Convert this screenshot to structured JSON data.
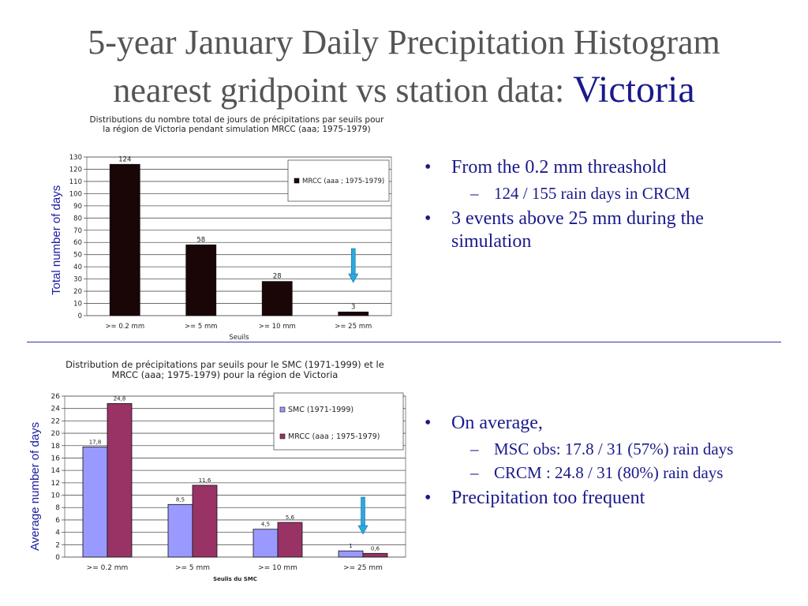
{
  "slide": {
    "title_line1": "5-year January Daily Precipitation Histogram",
    "title_line2": "nearest gridpoint vs station data: ",
    "title_highlight": "Victoria"
  },
  "colors": {
    "title": "#555555",
    "highlight": "#1a1a8c",
    "bullets": "#1a1a8c",
    "arrow": "#29a9e0"
  },
  "bullets_top": [
    {
      "text": "From the 0.2 mm threashold",
      "sub": [
        "124 / 155 rain days in CRCM"
      ]
    },
    {
      "text": "3 events above 25 mm during the simulation",
      "sub": []
    }
  ],
  "bullets_bottom": [
    {
      "text": "On average,",
      "sub": [
        "MSC obs: 17.8 / 31   (57%) rain days",
        "CRCM : 24.8 / 31  (80%) rain days"
      ]
    },
    {
      "text": "Precipitation too frequent",
      "sub": []
    }
  ],
  "chart_data": [
    {
      "type": "bar",
      "title": "Distributions du nombre total de jours de précipitations par seuils pour la région de Victoria pendant simulation MRCC (aaa; 1975-1979)",
      "xlabel": "Seuils",
      "ylabel": "Total number of days",
      "ylim": [
        0,
        130
      ],
      "yticks": [
        0,
        10,
        20,
        30,
        40,
        50,
        60,
        70,
        80,
        90,
        100,
        110,
        120,
        130
      ],
      "grid": true,
      "legend_position": "top-right",
      "categories": [
        ">= 0.2 mm",
        ">= 5 mm",
        ">= 10 mm",
        ">= 25 mm"
      ],
      "series": [
        {
          "name": "MRCC (aaa ; 1975-1979)",
          "values": [
            124,
            58,
            28,
            3
          ],
          "labels": [
            "124",
            "58",
            "28",
            "3"
          ],
          "color": "#1a0606"
        }
      ],
      "annotation_arrow_category": ">= 25 mm"
    },
    {
      "type": "bar",
      "title": "Distribution de précipitations par seuils pour le SMC (1971-1999) et le MRCC (aaa; 1975-1979) pour la région de Victoria",
      "xlabel": "Seulis du SMC",
      "ylabel": "Average number of days",
      "ylim": [
        0,
        26
      ],
      "yticks": [
        0,
        2,
        4,
        6,
        8,
        10,
        12,
        14,
        16,
        18,
        20,
        22,
        24,
        26
      ],
      "grid": true,
      "legend_position": "top-right",
      "categories": [
        ">= 0.2 mm",
        ">= 5 mm",
        ">= 10 mm",
        ">= 25 mm"
      ],
      "series": [
        {
          "name": "SMC (1971-1999)",
          "values": [
            17.8,
            8.5,
            4.5,
            1
          ],
          "labels": [
            "17,8",
            "8,5",
            "4,5",
            "1"
          ],
          "color": "#9999ff"
        },
        {
          "name": "MRCC (aaa ; 1975-1979)",
          "values": [
            24.8,
            11.6,
            5.6,
            0.6
          ],
          "labels": [
            "24,8",
            "11,6",
            "5,6",
            "0,6"
          ],
          "color": "#993366"
        }
      ],
      "annotation_arrow_category": ">= 25 mm"
    }
  ]
}
